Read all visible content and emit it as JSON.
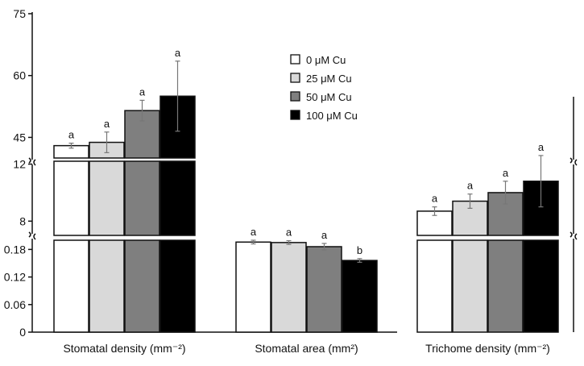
{
  "chart_data": {
    "type": "bar",
    "y_axis_type": "broken",
    "categories": [
      "Stomatal density (mm⁻²)",
      "Stomatal area (mm²)",
      "Trichome density (mm⁻²)"
    ],
    "series": [
      {
        "name": "0 μM Cu",
        "color": "#ffffff",
        "values": [
          43.0,
          0.196,
          8.7
        ],
        "errors": [
          0.6,
          0.004,
          0.3
        ]
      },
      {
        "name": "25 μM Cu",
        "color": "#d9d9d9",
        "values": [
          43.8,
          0.195,
          9.4
        ],
        "errors": [
          2.5,
          0.004,
          0.5
        ]
      },
      {
        "name": "50 μM Cu",
        "color": "#7f7f7f",
        "values": [
          51.5,
          0.186,
          10.0
        ],
        "errors": [
          2.5,
          0.007,
          0.8
        ]
      },
      {
        "name": "100 μM Cu",
        "color": "#000000",
        "values": [
          55.0,
          0.156,
          10.8
        ],
        "errors": [
          8.5,
          0.004,
          1.8
        ]
      }
    ],
    "significance": [
      [
        "a",
        "a",
        "a",
        "a"
      ],
      [
        "a",
        "a",
        "a",
        "b"
      ],
      [
        "a",
        "a",
        "a",
        "a"
      ]
    ],
    "y_segments": [
      {
        "range": [
          0,
          0.2
        ],
        "ticks": [
          "0",
          "0.06",
          "0.12",
          "0.18"
        ],
        "tick_values": [
          0,
          0.06,
          0.12,
          0.18
        ]
      },
      {
        "range": [
          7,
          12.2
        ],
        "ticks": [
          "8",
          "12"
        ],
        "tick_values": [
          8,
          12
        ]
      },
      {
        "range": [
          40,
          75
        ],
        "ticks": [
          "45",
          "60",
          "75"
        ],
        "tick_values": [
          45,
          60,
          75
        ]
      }
    ],
    "legend_position": "top-center",
    "grid": false
  }
}
